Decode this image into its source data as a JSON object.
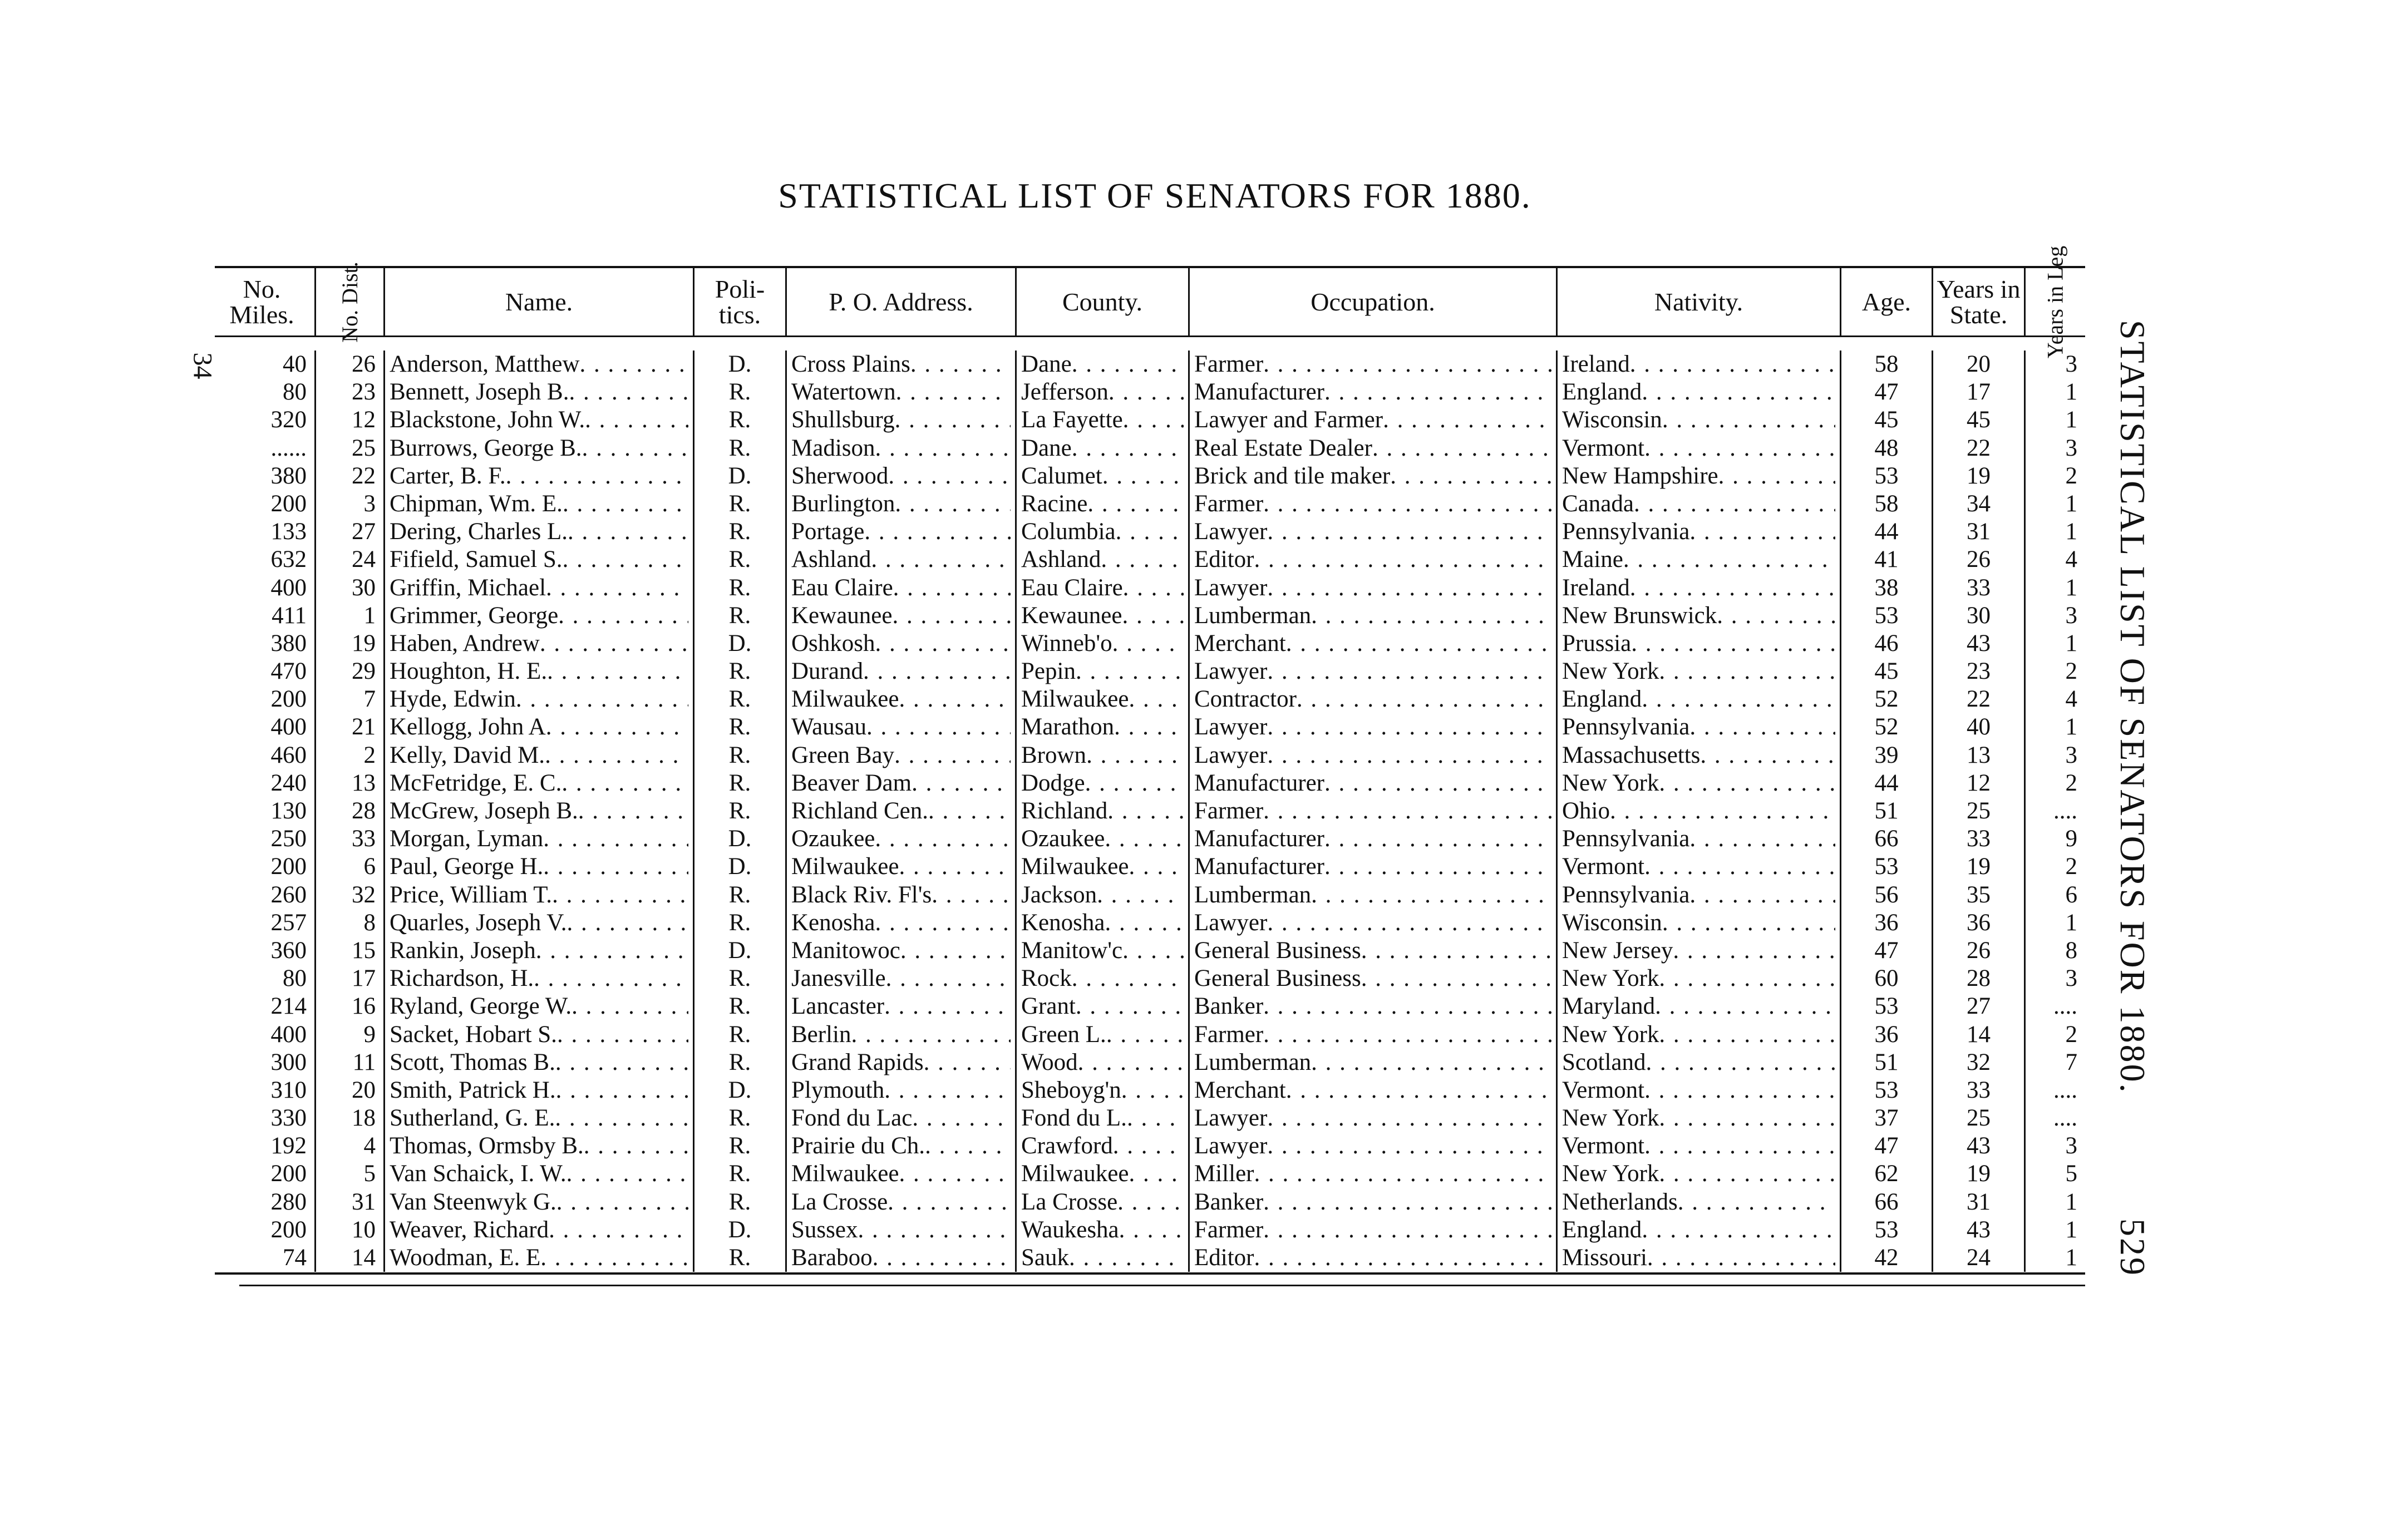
{
  "page": {
    "title": "STATISTICAL LIST OF SENATORS FOR 1880.",
    "side_title": "STATISTICAL LIST OF SENATORS FOR 1880.",
    "page_number": "529",
    "margin_number": "34"
  },
  "table": {
    "headers": [
      {
        "key": "miles",
        "label": "No. Miles."
      },
      {
        "key": "dist",
        "label": "No. Dist.",
        "vertical": true
      },
      {
        "key": "name",
        "label": "Name."
      },
      {
        "key": "politics",
        "label": "Poli- tics."
      },
      {
        "key": "po",
        "label": "P. O. Address."
      },
      {
        "key": "county",
        "label": "County."
      },
      {
        "key": "occupation",
        "label": "Occupation."
      },
      {
        "key": "nativity",
        "label": "Nativity."
      },
      {
        "key": "age",
        "label": "Age."
      },
      {
        "key": "years_state",
        "label": "Years in State."
      },
      {
        "key": "years_leg",
        "label": "Years in Leg",
        "vertical": true
      }
    ],
    "rows": [
      [
        "40",
        "26",
        "Anderson, Matthew",
        "D.",
        "Cross Plains",
        "Dane",
        "Farmer",
        "Ireland",
        "58",
        "20",
        "3"
      ],
      [
        "80",
        "23",
        "Bennett, Joseph B.",
        "R.",
        "Watertown",
        "Jefferson",
        "Manufacturer",
        "England",
        "47",
        "17",
        "1"
      ],
      [
        "320",
        "12",
        "Blackstone, John W.",
        "R.",
        "Shullsburg",
        "La Fayette",
        "Lawyer and Farmer",
        "Wisconsin",
        "45",
        "45",
        "1"
      ],
      [
        "......",
        "25",
        "Burrows, George B.",
        "R.",
        "Madison",
        "Dane",
        "Real Estate Dealer",
        "Vermont",
        "48",
        "22",
        "3"
      ],
      [
        "380",
        "22",
        "Carter, B. F.",
        "D.",
        "Sherwood",
        "Calumet",
        "Brick and tile maker",
        "New Hampshire",
        "53",
        "19",
        "2"
      ],
      [
        "200",
        "3",
        "Chipman, Wm. E.",
        "R.",
        "Burlington",
        "Racine",
        "Farmer",
        "Canada",
        "58",
        "34",
        "1"
      ],
      [
        "133",
        "27",
        "Dering, Charles L.",
        "R.",
        "Portage",
        "Columbia",
        "Lawyer",
        "Pennsylvania",
        "44",
        "31",
        "1"
      ],
      [
        "632",
        "24",
        "Fifield, Samuel S.",
        "R.",
        "Ashland",
        "Ashland",
        "Editor",
        "Maine",
        "41",
        "26",
        "4"
      ],
      [
        "400",
        "30",
        "Griffin, Michael",
        "R.",
        "Eau Claire",
        "Eau Claire",
        "Lawyer",
        "Ireland",
        "38",
        "33",
        "1"
      ],
      [
        "411",
        "1",
        "Grimmer, George",
        "R.",
        "Kewaunee",
        "Kewaunee",
        "Lumberman",
        "New Brunswick",
        "53",
        "30",
        "3"
      ],
      [
        "380",
        "19",
        "Haben, Andrew",
        "D.",
        "Oshkosh",
        "Winneb'o",
        "Merchant",
        "Prussia",
        "46",
        "43",
        "1"
      ],
      [
        "470",
        "29",
        "Houghton, H. E.",
        "R.",
        "Durand",
        "Pepin",
        "Lawyer",
        "New York",
        "45",
        "23",
        "2"
      ],
      [
        "200",
        "7",
        "Hyde, Edwin",
        "R.",
        "Milwaukee",
        "Milwaukee",
        "Contractor",
        "England",
        "52",
        "22",
        "4"
      ],
      [
        "400",
        "21",
        "Kellogg, John A",
        "R.",
        "Wausau",
        "Marathon",
        "Lawyer",
        "Pennsylvania",
        "52",
        "40",
        "1"
      ],
      [
        "460",
        "2",
        "Kelly, David M.",
        "R.",
        "Green Bay",
        "Brown",
        "Lawyer",
        "Massachusetts",
        "39",
        "13",
        "3"
      ],
      [
        "240",
        "13",
        "McFetridge, E. C.",
        "R.",
        "Beaver Dam",
        "Dodge",
        "Manufacturer",
        "New York",
        "44",
        "12",
        "2"
      ],
      [
        "130",
        "28",
        "McGrew, Joseph B.",
        "R.",
        "Richland Cen.",
        "Richland",
        "Farmer",
        "Ohio",
        "51",
        "25",
        "...."
      ],
      [
        "250",
        "33",
        "Morgan, Lyman",
        "D.",
        "Ozaukee",
        "Ozaukee",
        "Manufacturer",
        "Pennsylvania",
        "66",
        "33",
        "9"
      ],
      [
        "200",
        "6",
        "Paul, George H.",
        "D.",
        "Milwaukee",
        "Milwaukee",
        "Manufacturer",
        "Vermont",
        "53",
        "19",
        "2"
      ],
      [
        "260",
        "32",
        "Price, William T.",
        "R.",
        "Black Riv. Fl's",
        "Jackson",
        "Lumberman",
        "Pennsylvania",
        "56",
        "35",
        "6"
      ],
      [
        "257",
        "8",
        "Quarles, Joseph V.",
        "R.",
        "Kenosha",
        "Kenosha",
        "Lawyer",
        "Wisconsin",
        "36",
        "36",
        "1"
      ],
      [
        "360",
        "15",
        "Rankin, Joseph",
        "D.",
        "Manitowoc",
        "Manitow'c",
        "General Business",
        "New Jersey",
        "47",
        "26",
        "8"
      ],
      [
        "80",
        "17",
        "Richardson, H.",
        "R.",
        "Janesville",
        "Rock",
        "General Business",
        "New York",
        "60",
        "28",
        "3"
      ],
      [
        "214",
        "16",
        "Ryland, George W.",
        "R.",
        "Lancaster",
        "Grant",
        "Banker",
        "Maryland",
        "53",
        "27",
        "...."
      ],
      [
        "400",
        "9",
        "Sacket, Hobart S.",
        "R.",
        "Berlin",
        "Green L.",
        "Farmer",
        "New York",
        "36",
        "14",
        "2"
      ],
      [
        "300",
        "11",
        "Scott, Thomas B.",
        "R.",
        "Grand Rapids",
        "Wood",
        "Lumberman",
        "Scotland",
        "51",
        "32",
        "7"
      ],
      [
        "310",
        "20",
        "Smith, Patrick H.",
        "D.",
        "Plymouth",
        "Sheboyg'n",
        "Merchant",
        "Vermont",
        "53",
        "33",
        "...."
      ],
      [
        "330",
        "18",
        "Sutherland, G. E.",
        "R.",
        "Fond du Lac",
        "Fond du L.",
        "Lawyer",
        "New York",
        "37",
        "25",
        "...."
      ],
      [
        "192",
        "4",
        "Thomas, Ormsby B.",
        "R.",
        "Prairie du Ch.",
        "Crawford",
        "Lawyer",
        "Vermont",
        "47",
        "43",
        "3"
      ],
      [
        "200",
        "5",
        "Van Schaick, I. W.",
        "R.",
        "Milwaukee",
        "Milwaukee",
        "Miller",
        "New York",
        "62",
        "19",
        "5"
      ],
      [
        "280",
        "31",
        "Van Steenwyk G.",
        "R.",
        "La Crosse",
        "La Crosse",
        "Banker",
        "Netherlands",
        "66",
        "31",
        "1"
      ],
      [
        "200",
        "10",
        "Weaver, Richard",
        "D.",
        "Sussex",
        "Waukesha",
        "Farmer",
        "England",
        "53",
        "43",
        "1"
      ],
      [
        "74",
        "14",
        "Woodman, E. E",
        "R.",
        "Baraboo",
        "Sauk",
        "Editor",
        "Missouri",
        "42",
        "24",
        "1"
      ]
    ]
  }
}
